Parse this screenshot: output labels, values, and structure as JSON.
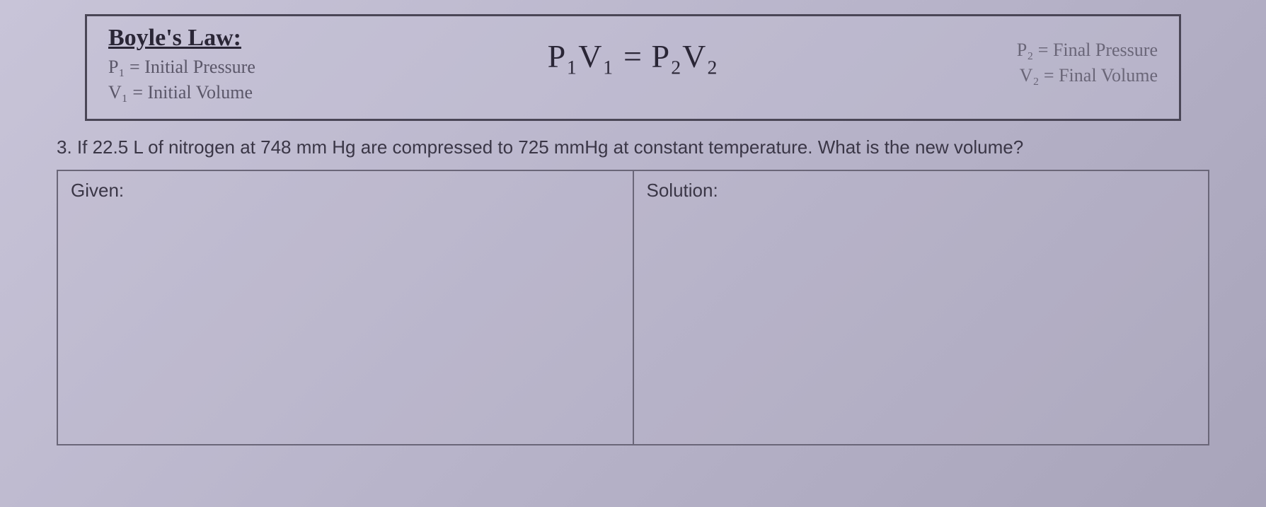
{
  "law_box": {
    "title": "Boyle's Law:",
    "left_defs": {
      "p1": "P₁ = Initial Pressure",
      "v1": "V₁ = Initial Volume"
    },
    "formula": "P₁V₁ = P₂V₂",
    "right_defs": {
      "p2": "P₂ = Final Pressure",
      "v2": "V₂ = Final Volume"
    }
  },
  "question": {
    "number": "3.",
    "text": "If 22.5 L of nitrogen at 748 mm Hg are compressed to 725 mmHg at constant temperature. What is the new volume?"
  },
  "table": {
    "given_label": "Given:",
    "solution_label": "Solution:"
  },
  "colors": {
    "background": "#c0bcd0",
    "border": "#4a4656",
    "text_dark": "#2a2636",
    "text_medium": "#3a3646",
    "text_light": "#6a6678"
  },
  "fonts": {
    "title_size": 34,
    "def_size": 26,
    "formula_size": 46,
    "question_size": 26,
    "label_size": 26
  }
}
